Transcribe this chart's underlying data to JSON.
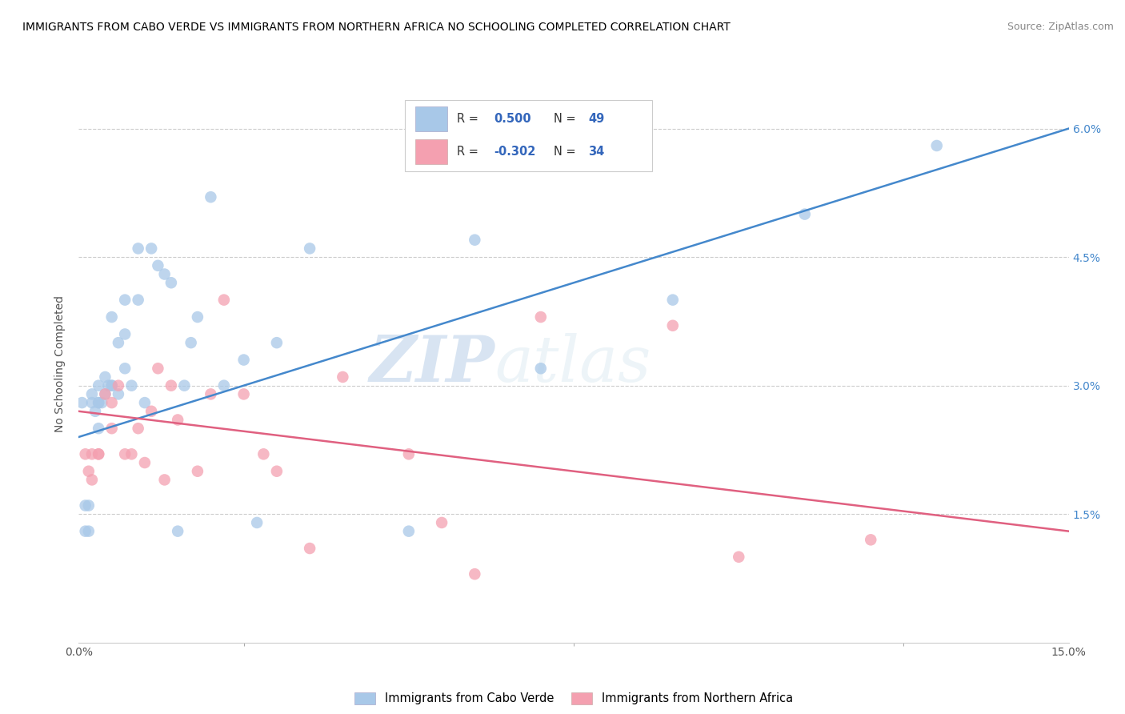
{
  "title": "IMMIGRANTS FROM CABO VERDE VS IMMIGRANTS FROM NORTHERN AFRICA NO SCHOOLING COMPLETED CORRELATION CHART",
  "source": "Source: ZipAtlas.com",
  "ylabel": "No Schooling Completed",
  "xlim": [
    0.0,
    0.15
  ],
  "ylim": [
    0.0,
    0.065
  ],
  "legend1_r": "0.500",
  "legend1_n": "49",
  "legend2_r": "-0.302",
  "legend2_n": "34",
  "blue_color": "#a8c8e8",
  "blue_line_color": "#4488cc",
  "pink_color": "#f4a0b0",
  "pink_line_color": "#e06080",
  "legend_blue_label": "Immigrants from Cabo Verde",
  "legend_pink_label": "Immigrants from Northern Africa",
  "watermark_zip": "ZIP",
  "watermark_atlas": "atlas",
  "blue_x": [
    0.0005,
    0.001,
    0.001,
    0.0015,
    0.0015,
    0.002,
    0.002,
    0.0025,
    0.003,
    0.003,
    0.003,
    0.003,
    0.0035,
    0.004,
    0.004,
    0.0045,
    0.005,
    0.005,
    0.005,
    0.006,
    0.006,
    0.007,
    0.007,
    0.007,
    0.008,
    0.009,
    0.009,
    0.01,
    0.011,
    0.012,
    0.013,
    0.014,
    0.015,
    0.016,
    0.017,
    0.018,
    0.02,
    0.022,
    0.025,
    0.027,
    0.03,
    0.035,
    0.05,
    0.055,
    0.06,
    0.07,
    0.09,
    0.11,
    0.13
  ],
  "blue_y": [
    0.028,
    0.016,
    0.013,
    0.013,
    0.016,
    0.029,
    0.028,
    0.027,
    0.03,
    0.028,
    0.028,
    0.025,
    0.028,
    0.031,
    0.029,
    0.03,
    0.03,
    0.03,
    0.038,
    0.029,
    0.035,
    0.036,
    0.04,
    0.032,
    0.03,
    0.04,
    0.046,
    0.028,
    0.046,
    0.044,
    0.043,
    0.042,
    0.013,
    0.03,
    0.035,
    0.038,
    0.052,
    0.03,
    0.033,
    0.014,
    0.035,
    0.046,
    0.013,
    0.057,
    0.047,
    0.032,
    0.04,
    0.05,
    0.058
  ],
  "pink_x": [
    0.001,
    0.0015,
    0.002,
    0.002,
    0.003,
    0.003,
    0.004,
    0.005,
    0.005,
    0.006,
    0.007,
    0.008,
    0.009,
    0.01,
    0.011,
    0.012,
    0.013,
    0.014,
    0.015,
    0.018,
    0.02,
    0.022,
    0.025,
    0.028,
    0.03,
    0.035,
    0.04,
    0.05,
    0.055,
    0.06,
    0.07,
    0.09,
    0.1,
    0.12
  ],
  "pink_y": [
    0.022,
    0.02,
    0.022,
    0.019,
    0.022,
    0.022,
    0.029,
    0.028,
    0.025,
    0.03,
    0.022,
    0.022,
    0.025,
    0.021,
    0.027,
    0.032,
    0.019,
    0.03,
    0.026,
    0.02,
    0.029,
    0.04,
    0.029,
    0.022,
    0.02,
    0.011,
    0.031,
    0.022,
    0.014,
    0.008,
    0.038,
    0.037,
    0.01,
    0.012
  ],
  "blue_line_x0": 0.0,
  "blue_line_y0": 0.024,
  "blue_line_x1": 0.15,
  "blue_line_y1": 0.06,
  "pink_line_x0": 0.0,
  "pink_line_y0": 0.027,
  "pink_line_x1": 0.15,
  "pink_line_y1": 0.013
}
